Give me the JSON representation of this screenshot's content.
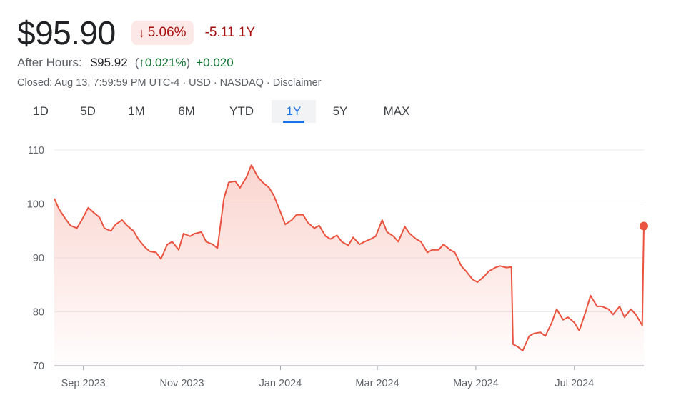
{
  "quote": {
    "price": "$95.90",
    "change_pct": "5.06%",
    "change_abs": "-5.11 1Y",
    "direction_icon": "arrow-down-icon"
  },
  "after_hours": {
    "label": "After Hours:",
    "price": "$95.92",
    "paren_open": "(",
    "arrow": "↑",
    "pct": "0.021%",
    "paren_close": ")",
    "abs": "+0.020"
  },
  "closed_line": "Closed: Aug 13, 7:59:59 PM UTC-4 · USD · NASDAQ · Disclaimer",
  "tabs": [
    {
      "label": "1D"
    },
    {
      "label": "5D"
    },
    {
      "label": "1M"
    },
    {
      "label": "6M"
    },
    {
      "label": "YTD"
    },
    {
      "label": "1Y",
      "active": true
    },
    {
      "label": "5Y"
    },
    {
      "label": "MAX"
    }
  ],
  "colors": {
    "line": "#e9533f",
    "fill": "#f6b1a7",
    "negative": "#a50e0e",
    "positive": "#137333",
    "active_tab": "#1a73e8"
  },
  "chart_data": {
    "type": "line",
    "x_range": [
      "2023-08-14",
      "2024-08-13"
    ],
    "ylim": [
      70,
      110
    ],
    "y_ticks": [
      70,
      80,
      90,
      100,
      110
    ],
    "x_ticks": [
      {
        "label": "Sep 2023",
        "date": "2023-09-01"
      },
      {
        "label": "Nov 2023",
        "date": "2023-11-01"
      },
      {
        "label": "Jan 2024",
        "date": "2024-01-01"
      },
      {
        "label": "Mar 2024",
        "date": "2024-03-01"
      },
      {
        "label": "May 2024",
        "date": "2024-05-01"
      },
      {
        "label": "Jul 2024",
        "date": "2024-07-01"
      }
    ],
    "grid": true,
    "series": [
      {
        "points": [
          [
            "2023-08-14",
            101.0
          ],
          [
            "2023-08-17",
            99.0
          ],
          [
            "2023-08-21",
            97.2
          ],
          [
            "2023-08-24",
            96.0
          ],
          [
            "2023-08-28",
            95.5
          ],
          [
            "2023-08-31",
            97.0
          ],
          [
            "2023-09-04",
            99.3
          ],
          [
            "2023-09-07",
            98.5
          ],
          [
            "2023-09-11",
            97.5
          ],
          [
            "2023-09-14",
            95.5
          ],
          [
            "2023-09-18",
            95.0
          ],
          [
            "2023-09-21",
            96.2
          ],
          [
            "2023-09-25",
            97.0
          ],
          [
            "2023-09-28",
            96.0
          ],
          [
            "2023-10-02",
            95.0
          ],
          [
            "2023-10-05",
            93.5
          ],
          [
            "2023-10-09",
            92.0
          ],
          [
            "2023-10-12",
            91.2
          ],
          [
            "2023-10-16",
            91.0
          ],
          [
            "2023-10-19",
            89.8
          ],
          [
            "2023-10-23",
            92.5
          ],
          [
            "2023-10-26",
            93.0
          ],
          [
            "2023-10-30",
            91.5
          ],
          [
            "2023-11-02",
            94.5
          ],
          [
            "2023-11-06",
            94.0
          ],
          [
            "2023-11-09",
            94.5
          ],
          [
            "2023-11-13",
            94.8
          ],
          [
            "2023-11-16",
            93.0
          ],
          [
            "2023-11-20",
            92.5
          ],
          [
            "2023-11-23",
            91.8
          ],
          [
            "2023-11-27",
            101.0
          ],
          [
            "2023-11-30",
            104.0
          ],
          [
            "2023-12-04",
            104.2
          ],
          [
            "2023-12-07",
            103.0
          ],
          [
            "2023-12-11",
            105.0
          ],
          [
            "2023-12-14",
            107.2
          ],
          [
            "2023-12-18",
            105.0
          ],
          [
            "2023-12-21",
            104.0
          ],
          [
            "2023-12-25",
            103.0
          ],
          [
            "2023-12-28",
            101.5
          ],
          [
            "2024-01-01",
            98.5
          ],
          [
            "2024-01-04",
            96.2
          ],
          [
            "2024-01-08",
            97.0
          ],
          [
            "2024-01-11",
            98.0
          ],
          [
            "2024-01-15",
            98.0
          ],
          [
            "2024-01-18",
            96.5
          ],
          [
            "2024-01-22",
            95.5
          ],
          [
            "2024-01-25",
            96.0
          ],
          [
            "2024-01-29",
            94.0
          ],
          [
            "2024-02-01",
            93.5
          ],
          [
            "2024-02-05",
            94.2
          ],
          [
            "2024-02-08",
            93.0
          ],
          [
            "2024-02-12",
            92.3
          ],
          [
            "2024-02-15",
            93.8
          ],
          [
            "2024-02-19",
            92.5
          ],
          [
            "2024-02-22",
            93.0
          ],
          [
            "2024-02-26",
            93.5
          ],
          [
            "2024-02-29",
            94.0
          ],
          [
            "2024-03-04",
            97.0
          ],
          [
            "2024-03-07",
            94.8
          ],
          [
            "2024-03-11",
            94.0
          ],
          [
            "2024-03-14",
            93.0
          ],
          [
            "2024-03-18",
            95.8
          ],
          [
            "2024-03-21",
            94.5
          ],
          [
            "2024-03-25",
            93.5
          ],
          [
            "2024-03-28",
            93.0
          ],
          [
            "2024-04-01",
            91.0
          ],
          [
            "2024-04-04",
            91.5
          ],
          [
            "2024-04-08",
            91.5
          ],
          [
            "2024-04-11",
            92.5
          ],
          [
            "2024-04-15",
            91.5
          ],
          [
            "2024-04-18",
            91.0
          ],
          [
            "2024-04-22",
            88.5
          ],
          [
            "2024-04-25",
            87.5
          ],
          [
            "2024-04-29",
            86.0
          ],
          [
            "2024-05-02",
            85.5
          ],
          [
            "2024-05-06",
            86.5
          ],
          [
            "2024-05-09",
            87.5
          ],
          [
            "2024-05-13",
            88.2
          ],
          [
            "2024-05-16",
            88.5
          ],
          [
            "2024-05-20",
            88.2
          ],
          [
            "2024-05-23",
            88.3
          ],
          [
            "2024-05-24",
            74.0
          ],
          [
            "2024-05-27",
            73.5
          ],
          [
            "2024-05-30",
            72.8
          ],
          [
            "2024-06-03",
            75.5
          ],
          [
            "2024-06-06",
            76.0
          ],
          [
            "2024-06-10",
            76.2
          ],
          [
            "2024-06-13",
            75.5
          ],
          [
            "2024-06-17",
            78.0
          ],
          [
            "2024-06-20",
            80.5
          ],
          [
            "2024-06-24",
            78.5
          ],
          [
            "2024-06-27",
            79.0
          ],
          [
            "2024-07-01",
            78.0
          ],
          [
            "2024-07-04",
            76.5
          ],
          [
            "2024-07-08",
            80.0
          ],
          [
            "2024-07-11",
            83.0
          ],
          [
            "2024-07-15",
            81.0
          ],
          [
            "2024-07-18",
            81.0
          ],
          [
            "2024-07-22",
            80.5
          ],
          [
            "2024-07-25",
            79.5
          ],
          [
            "2024-07-29",
            81.0
          ],
          [
            "2024-08-01",
            79.0
          ],
          [
            "2024-08-05",
            80.5
          ],
          [
            "2024-08-08",
            79.5
          ],
          [
            "2024-08-12",
            77.5
          ],
          [
            "2024-08-13",
            95.9
          ]
        ]
      }
    ]
  }
}
